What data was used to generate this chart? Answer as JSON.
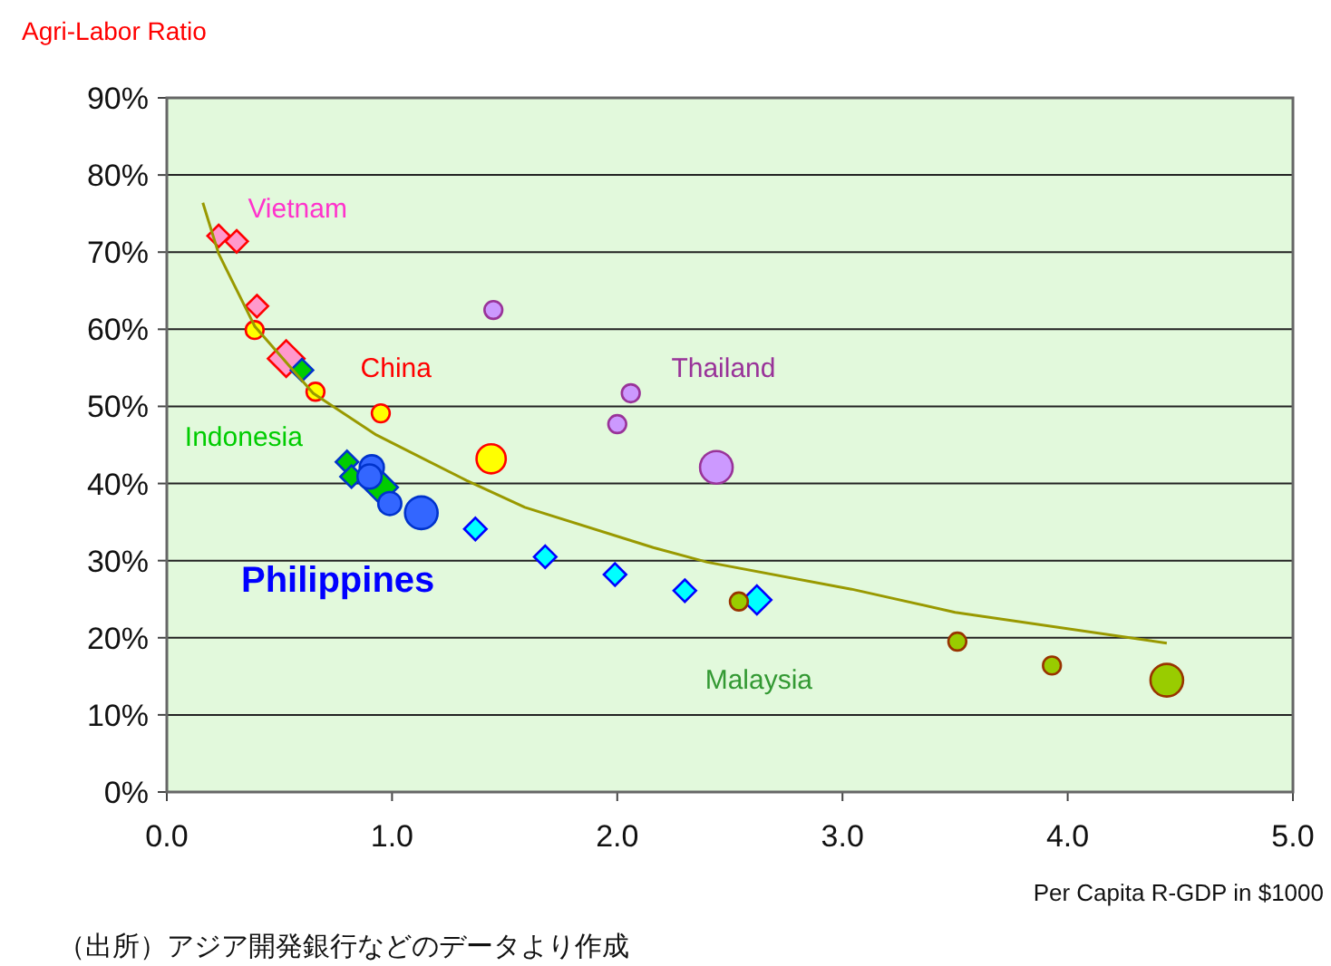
{
  "chart_data": {
    "type": "bubble",
    "xlabel": "Per Capita R-GDP in $1000",
    "ylabel": "Agri-Labor Ratio",
    "xlim": [
      0,
      5
    ],
    "ylim": [
      0,
      90
    ],
    "xticks": [
      {
        "value": 0,
        "label": "0.0"
      },
      {
        "value": 1,
        "label": "1.0"
      },
      {
        "value": 2,
        "label": "2.0"
      },
      {
        "value": 3,
        "label": "3.0"
      },
      {
        "value": 4,
        "label": "4.0"
      },
      {
        "value": 5,
        "label": "5.0"
      }
    ],
    "yticks": [
      {
        "value": 0,
        "label": "0%"
      },
      {
        "value": 10,
        "label": "10%"
      },
      {
        "value": 20,
        "label": "20%"
      },
      {
        "value": 30,
        "label": "30%"
      },
      {
        "value": 40,
        "label": "40%"
      },
      {
        "value": 50,
        "label": "50%"
      },
      {
        "value": 60,
        "label": "60%"
      },
      {
        "value": 70,
        "label": "70%"
      },
      {
        "value": 80,
        "label": "80%"
      },
      {
        "value": 90,
        "label": "90%"
      }
    ],
    "grid": "y",
    "series": [
      {
        "name": "Vietnam",
        "color": "#ff99cc",
        "marker": "diamond",
        "x": [
          0.23,
          0.31,
          0.4,
          0.53
        ],
        "values": [
          72.1,
          71.4,
          63.0,
          56.2
        ],
        "sizes": [
          0.3,
          0.3,
          0.3,
          0.8
        ]
      },
      {
        "name": "China",
        "color": "#ffff00",
        "marker": "circle",
        "x": [
          0.39,
          0.66,
          0.95,
          1.44
        ],
        "values": [
          59.9,
          51.9,
          49.1,
          43.2
        ],
        "sizes": [
          0.3,
          0.3,
          0.3,
          0.8
        ]
      },
      {
        "name": "Indonesia",
        "color": "#00cc00",
        "marker": "diamond",
        "x": [
          0.6,
          0.8,
          0.82,
          0.95
        ],
        "values": [
          54.7,
          42.8,
          40.9,
          39.5
        ],
        "sizes": [
          0.3,
          0.3,
          0.3,
          0.7
        ]
      },
      {
        "name": "Philippines",
        "color": "#3366ff",
        "marker": "circle",
        "x": [
          0.91,
          0.9,
          0.99,
          1.13
        ],
        "values": [
          42.1,
          40.9,
          37.4,
          36.2
        ],
        "sizes": [
          0.55,
          0.55,
          0.5,
          1
        ]
      },
      {
        "color": "#00ffff",
        "marker": "diamond",
        "x": [
          1.37,
          1.68,
          1.99,
          2.3,
          2.62
        ],
        "values": [
          34.1,
          30.5,
          28.2,
          26.1,
          24.9
        ],
        "sizes": [
          0.3,
          0.3,
          0.3,
          0.3,
          0.5
        ]
      },
      {
        "name": "Thailand",
        "color": "#cc99ff",
        "marker": "circle",
        "x": [
          1.45,
          2.06,
          2.0,
          2.44
        ],
        "values": [
          62.5,
          51.7,
          47.7,
          42.1
        ],
        "sizes": [
          0.3,
          0.3,
          0.3,
          1
        ]
      },
      {
        "name": "Malaysia",
        "color": "#99cc00",
        "marker": "circle",
        "x": [
          2.54,
          3.51,
          3.93,
          4.44
        ],
        "values": [
          24.7,
          19.5,
          16.4,
          14.5
        ],
        "sizes": [
          0.3,
          0.3,
          0.3,
          1
        ]
      },
      {
        "type": "line",
        "color": "#999900",
        "x": [
          0.16,
          0.23,
          0.31,
          0.39,
          0.65,
          0.93,
          1.33,
          1.59,
          2.16,
          2.4,
          3.04,
          3.5,
          4.44
        ],
        "values": [
          76.4,
          69.8,
          65.1,
          60.4,
          51.7,
          46.3,
          40.4,
          36.9,
          31.7,
          29.8,
          26.3,
          23.3,
          19.3
        ]
      }
    ],
    "annotations": [
      "（出所）アジア開発銀行などのデータより作成"
    ]
  }
}
